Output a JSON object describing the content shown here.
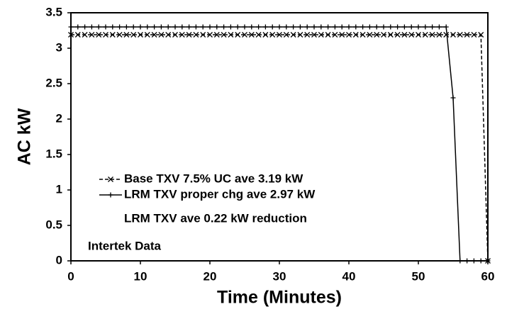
{
  "chart_data": {
    "type": "line",
    "xlabel": "Time (Minutes)",
    "ylabel": "AC kW",
    "annotations": [
      "LRM TXV ave 0.22 kW reduction",
      "Intertek Data"
    ],
    "x": [
      0,
      1,
      2,
      3,
      4,
      5,
      6,
      7,
      8,
      9,
      10,
      11,
      12,
      13,
      14,
      15,
      16,
      17,
      18,
      19,
      20,
      21,
      22,
      23,
      24,
      25,
      26,
      27,
      28,
      29,
      30,
      31,
      32,
      33,
      34,
      35,
      36,
      37,
      38,
      39,
      40,
      41,
      42,
      43,
      44,
      45,
      46,
      47,
      48,
      49,
      50,
      51,
      52,
      53,
      54,
      55,
      56,
      57,
      58,
      59,
      60
    ],
    "series": [
      {
        "name": "Base TXV 7.5% UC ave 3.19 kW",
        "color": "#000000",
        "marker": "x",
        "dashed": true,
        "values": [
          3.19,
          3.19,
          3.19,
          3.19,
          3.19,
          3.19,
          3.19,
          3.19,
          3.19,
          3.19,
          3.19,
          3.19,
          3.19,
          3.19,
          3.19,
          3.19,
          3.19,
          3.19,
          3.19,
          3.19,
          3.19,
          3.19,
          3.19,
          3.19,
          3.19,
          3.19,
          3.19,
          3.19,
          3.19,
          3.19,
          3.19,
          3.19,
          3.19,
          3.19,
          3.19,
          3.19,
          3.19,
          3.19,
          3.19,
          3.19,
          3.19,
          3.19,
          3.19,
          3.19,
          3.19,
          3.19,
          3.19,
          3.19,
          3.19,
          3.19,
          3.19,
          3.19,
          3.19,
          3.19,
          3.19,
          3.19,
          3.19,
          3.19,
          3.19,
          3.19,
          0
        ]
      },
      {
        "name": "LRM TXV proper chg ave 2.97 kW",
        "color": "#000000",
        "marker": "+",
        "dashed": false,
        "values": [
          3.3,
          3.3,
          3.3,
          3.3,
          3.3,
          3.3,
          3.3,
          3.3,
          3.3,
          3.3,
          3.3,
          3.3,
          3.3,
          3.3,
          3.3,
          3.3,
          3.3,
          3.3,
          3.3,
          3.3,
          3.3,
          3.3,
          3.3,
          3.3,
          3.3,
          3.3,
          3.3,
          3.3,
          3.3,
          3.3,
          3.3,
          3.3,
          3.3,
          3.3,
          3.3,
          3.3,
          3.3,
          3.3,
          3.3,
          3.3,
          3.3,
          3.3,
          3.3,
          3.3,
          3.3,
          3.3,
          3.3,
          3.3,
          3.3,
          3.3,
          3.3,
          3.3,
          3.3,
          3.3,
          3.3,
          2.3,
          0,
          0,
          0,
          0,
          0
        ]
      }
    ],
    "xlim": [
      0,
      60
    ],
    "xticks": [
      0,
      10,
      20,
      30,
      40,
      50,
      60
    ],
    "ylim": [
      0,
      3.5
    ],
    "yticks": [
      0,
      0.5,
      1,
      1.5,
      2,
      2.5,
      3,
      3.5
    ],
    "grid": false
  }
}
